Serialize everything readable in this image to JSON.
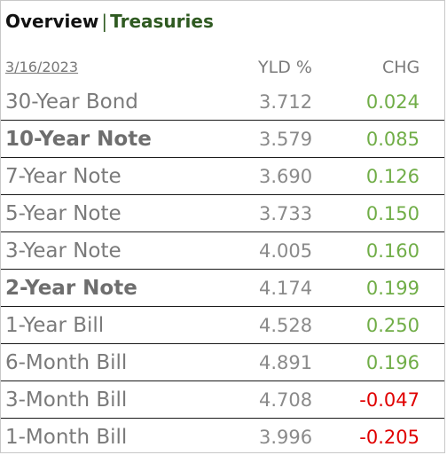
{
  "header": {
    "title_main": "Overview",
    "separator": "|",
    "title_sub": "Treasuries"
  },
  "table": {
    "date": "3/16/2023",
    "col_yld": "YLD %",
    "col_chg": "CHG",
    "rows": [
      {
        "name": "30-Year Bond",
        "yld": "3.712",
        "chg": "0.024",
        "bold": false,
        "direction": "up"
      },
      {
        "name": "10-Year Note",
        "yld": "3.579",
        "chg": "0.085",
        "bold": true,
        "direction": "up"
      },
      {
        "name": "7-Year Note",
        "yld": "3.690",
        "chg": "0.126",
        "bold": false,
        "direction": "up"
      },
      {
        "name": "5-Year Note",
        "yld": "3.733",
        "chg": "0.150",
        "bold": false,
        "direction": "up"
      },
      {
        "name": "3-Year Note",
        "yld": "4.005",
        "chg": "0.160",
        "bold": false,
        "direction": "up"
      },
      {
        "name": "2-Year Note",
        "yld": "4.174",
        "chg": "0.199",
        "bold": true,
        "direction": "up"
      },
      {
        "name": "1-Year Bill",
        "yld": "4.528",
        "chg": "0.250",
        "bold": false,
        "direction": "up"
      },
      {
        "name": "6-Month Bill",
        "yld": "4.891",
        "chg": "0.196",
        "bold": false,
        "direction": "up"
      },
      {
        "name": "3-Month Bill",
        "yld": "4.708",
        "chg": "-0.047",
        "bold": false,
        "direction": "down"
      },
      {
        "name": "1-Month Bill",
        "yld": "3.996",
        "chg": "-0.205",
        "bold": false,
        "direction": "down"
      }
    ]
  },
  "colors": {
    "title_main": "#111111",
    "title_sub": "#2f5a21",
    "positive": "#70ad47",
    "negative": "#e00000",
    "label": "#7a7a7a"
  }
}
